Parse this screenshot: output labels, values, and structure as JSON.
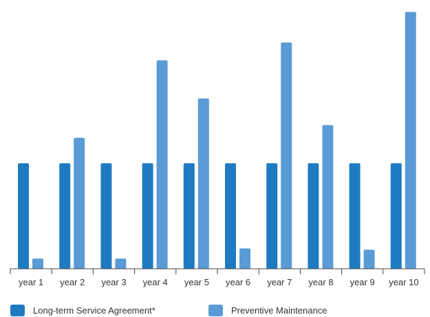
{
  "chart_data": {
    "type": "bar",
    "categories": [
      "year 1",
      "year 2",
      "year 3",
      "year 4",
      "year 5",
      "year 6",
      "year 7",
      "year 8",
      "year 9",
      "year 10"
    ],
    "series": [
      {
        "name": "Long-term Service Agreement*",
        "color": "#1f7bc1",
        "values": [
          41.5,
          41.5,
          41.5,
          41.5,
          41.5,
          41.5,
          41.5,
          41.5,
          41.5,
          41.5
        ]
      },
      {
        "name": "Preventive Maintenance",
        "color": "#5b9bd5",
        "values": [
          4,
          51.5,
          4,
          82,
          67,
          8,
          89,
          56.5,
          7.5,
          101
        ]
      }
    ],
    "title": "",
    "xlabel": "",
    "ylabel": "",
    "ylim": [
      0,
      103
    ],
    "grid": false,
    "legend_position": "bottom-left"
  }
}
